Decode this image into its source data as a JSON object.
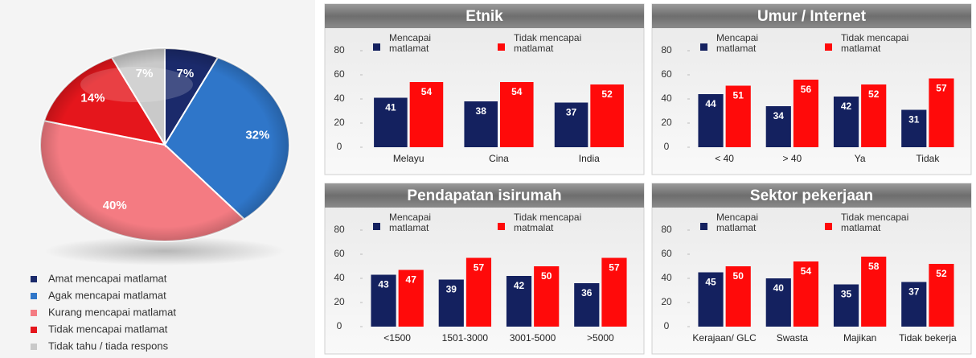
{
  "chart_data": [
    {
      "type": "pie",
      "categories": [
        "Amat mencapai matlamat",
        "Agak mencapai matlamat",
        "Kurang mencapai matlamat",
        "Tidak mencapai matlamat",
        "Tidak tahu / tiada respons"
      ],
      "values": [
        7,
        32,
        40,
        14,
        7
      ],
      "value_labels": [
        "7%",
        "32%",
        "40%",
        "14%",
        "7%"
      ],
      "colors": [
        "#1b2a6b",
        "#2f76c9",
        "#f47b82",
        "#e5161c",
        "#c9c9c9"
      ]
    },
    {
      "type": "bar",
      "title": "Etnik",
      "categories": [
        "Melayu",
        "Cina",
        "India"
      ],
      "series": [
        {
          "name": "Mencapai matlamat",
          "color": "#14215f",
          "values": [
            41,
            38,
            37
          ]
        },
        {
          "name": "Tidak mencapai matlamat",
          "color": "#ff0a0a",
          "values": [
            54,
            54,
            52
          ]
        }
      ],
      "ylim": [
        0,
        80
      ],
      "yticks": [
        0,
        20,
        40,
        60,
        80
      ]
    },
    {
      "type": "bar",
      "title": "Umur / Internet",
      "categories": [
        "< 40",
        "> 40",
        "Ya",
        "Tidak"
      ],
      "series": [
        {
          "name": "Mencapai matlamat",
          "color": "#14215f",
          "values": [
            44,
            34,
            42,
            31
          ]
        },
        {
          "name": "Tidak mencapai matlamat",
          "color": "#ff0a0a",
          "values": [
            51,
            56,
            52,
            57
          ]
        }
      ],
      "ylim": [
        0,
        80
      ],
      "yticks": [
        0,
        20,
        40,
        60,
        80
      ]
    },
    {
      "type": "bar",
      "title": "Pendapatan isirumah",
      "categories": [
        "<1500",
        "1501-3000",
        "3001-5000",
        ">5000"
      ],
      "series": [
        {
          "name": "Mencapai matlamat",
          "color": "#14215f",
          "values": [
            43,
            39,
            42,
            36
          ]
        },
        {
          "name": "Tidak mencapai matmalat",
          "color": "#ff0a0a",
          "values": [
            47,
            57,
            50,
            57
          ]
        }
      ],
      "ylim": [
        0,
        80
      ],
      "yticks": [
        0,
        20,
        40,
        60,
        80
      ]
    },
    {
      "type": "bar",
      "title": "Sektor pekerjaan",
      "categories": [
        "Kerajaan/ GLC",
        "Swasta",
        "Majikan",
        "Tidak bekerja"
      ],
      "series": [
        {
          "name": "Mencapai matlamat",
          "color": "#14215f",
          "values": [
            45,
            40,
            35,
            37
          ]
        },
        {
          "name": "Tidak mencapai matlamat",
          "color": "#ff0a0a",
          "values": [
            50,
            54,
            58,
            52
          ]
        }
      ],
      "ylim": [
        0,
        80
      ],
      "yticks": [
        0,
        20,
        40,
        60,
        80
      ]
    }
  ]
}
